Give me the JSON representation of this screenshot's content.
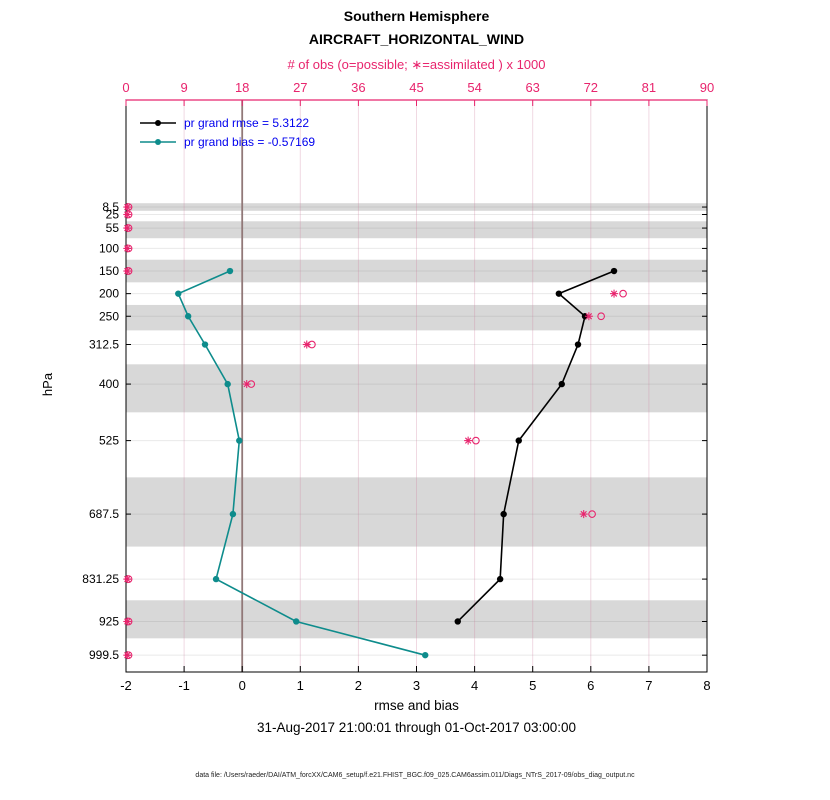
{
  "header": {
    "title": "Southern Hemisphere",
    "subtitle": "AIRCRAFT_HORIZONTAL_WIND",
    "obs_axis_label": "# of obs (o=possible; ∗=assimilated ) x 1000"
  },
  "legend": {
    "items": [
      {
        "label": "pr grand rmse = 5.3122",
        "series": "rmse"
      },
      {
        "label": "pr grand bias = -0.57169",
        "series": "bias"
      }
    ]
  },
  "footer": {
    "xlabel": "rmse and bias",
    "caption": "31-Aug-2017 21:00:01 through 01-Oct-2017 03:00:00",
    "datafile": "data file: /Users/raeder/DAI/ATM_forcXX/CAM6_setup/f.e21.FHIST_BGC.f09_025.CAM6assim.011/Diags_NTrS_2017-09/obs_diag_output.nc"
  },
  "chart_data": {
    "type": "line",
    "orientation": "vertical-profile",
    "title": "Southern Hemisphere",
    "subtitle": "AIRCRAFT_HORIZONTAL_WIND",
    "ylabel": "hPa",
    "xlabel_bottom": "rmse and bias",
    "xlabel_top": "# of obs (o=possible; ∗=assimilated ) x 1000",
    "xlim_bottom": [
      -2,
      8
    ],
    "xlim_top": [
      0,
      90
    ],
    "x_bottom_ticks": [
      -2,
      -1,
      0,
      1,
      2,
      3,
      4,
      5,
      6,
      7,
      8
    ],
    "x_top_ticks": [
      0,
      9,
      18,
      27,
      36,
      45,
      54,
      63,
      72,
      81,
      90
    ],
    "pressure_levels": [
      8.5,
      25,
      55,
      100,
      150,
      200,
      250,
      312.5,
      400,
      525,
      687.5,
      831.25,
      925,
      999.5
    ],
    "shaded_level_indices": [
      0,
      2,
      4,
      6,
      8,
      10,
      12
    ],
    "zero_line_x": 0,
    "series": [
      {
        "name": "pr grand rmse = 5.3122",
        "key": "rmse",
        "axis": "bottom",
        "levels": [
          150,
          200,
          250,
          312.5,
          400,
          525,
          687.5,
          831.25,
          925
        ],
        "values": [
          6.4,
          5.45,
          5.9,
          5.78,
          5.5,
          4.76,
          4.5,
          4.44,
          3.71
        ]
      },
      {
        "name": "pr grand bias = -0.57169",
        "key": "bias",
        "axis": "bottom",
        "levels": [
          150,
          200,
          250,
          312.5,
          400,
          525,
          687.5,
          831.25,
          925,
          999.5
        ],
        "values": [
          -0.21,
          -1.1,
          -0.93,
          -0.64,
          -0.25,
          -0.05,
          -0.16,
          -0.45,
          0.93,
          3.15
        ]
      }
    ],
    "obs_counts_x1000": {
      "axis": "top",
      "levels": [
        8.5,
        25,
        55,
        100,
        150,
        200,
        250,
        312.5,
        400,
        525,
        687.5,
        831.25,
        925,
        999.5
      ],
      "possible": [
        0.4,
        0.4,
        0.4,
        0.4,
        0.4,
        77.0,
        73.6,
        28.8,
        19.4,
        54.2,
        72.2,
        0.4,
        0.4,
        0.4
      ],
      "assimilated": [
        0.2,
        0.2,
        0.2,
        0.2,
        0.2,
        75.6,
        71.7,
        28.0,
        18.7,
        53.0,
        70.9,
        0.2,
        0.2,
        0.2
      ]
    },
    "colors": {
      "rmse": "#000000",
      "bias": "#0e8c8c",
      "obs": "#e8246d",
      "legend_text": "#0000ee",
      "band": "#d8d8d8",
      "zero_line": "#917878"
    }
  }
}
